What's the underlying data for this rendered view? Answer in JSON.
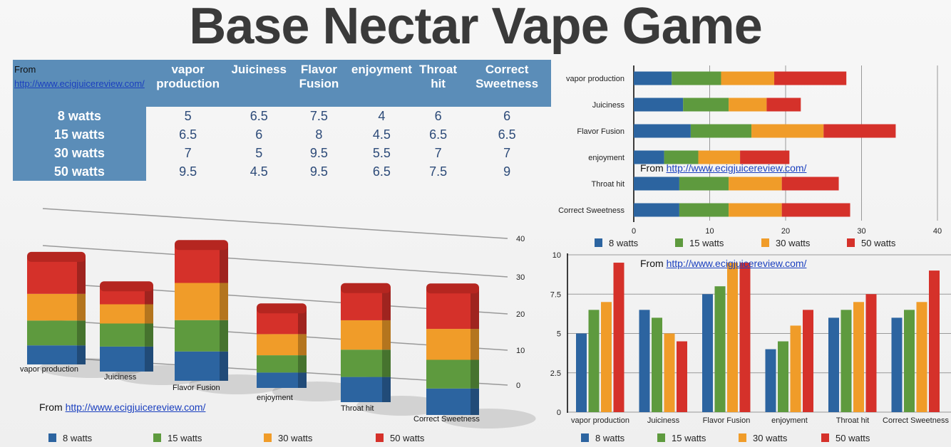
{
  "title": "Base Nectar Vape Game",
  "source_prefix": "From ",
  "source_link": "http://www.ecigjuicereview.com/",
  "table": {
    "corner_prefix": "From ",
    "corner_link": "http://www.ecigjuicereview.com/",
    "columns": [
      "vapor production",
      "Juiciness",
      "Flavor Fusion",
      "enjoyment",
      "Throat hit",
      "Correct Sweetness"
    ],
    "rows": [
      {
        "label": "8 watts",
        "values": [
          "5",
          "6.5",
          "7.5",
          "4",
          "6",
          "6"
        ]
      },
      {
        "label": "15 watts",
        "values": [
          "6.5",
          "6",
          "8",
          "4.5",
          "6.5",
          "6.5"
        ]
      },
      {
        "label": "30 watts",
        "values": [
          "7",
          "5",
          "9.5",
          "5.5",
          "7",
          "7"
        ]
      },
      {
        "label": "50 watts",
        "values": [
          "9.5",
          "4.5",
          "9.5",
          "6.5",
          "7.5",
          "9"
        ]
      }
    ]
  },
  "colors": {
    "8 watts": "#2c64a0",
    "15 watts": "#5e9a3e",
    "30 watts": "#f09c29",
    "50 watts": "#d5312a"
  },
  "chart_data": [
    {
      "type": "bar",
      "orientation": "horizontal",
      "stacked": true,
      "three_d": true,
      "categories": [
        "vapor production",
        "Juiciness",
        "Flavor Fusion",
        "enjoyment",
        "Throat hit",
        "Correct Sweetness"
      ],
      "series": [
        {
          "name": "8 watts",
          "values": [
            5,
            6.5,
            7.5,
            4,
            6,
            6
          ]
        },
        {
          "name": "15 watts",
          "values": [
            6.5,
            6,
            8,
            4.5,
            6.5,
            6.5
          ]
        },
        {
          "name": "30 watts",
          "values": [
            7,
            5,
            9.5,
            5.5,
            7,
            7
          ]
        },
        {
          "name": "50 watts",
          "values": [
            9.5,
            4.5,
            9.5,
            6.5,
            7.5,
            9
          ]
        }
      ],
      "yticks": [
        0,
        10,
        20,
        30,
        40
      ],
      "ylim": [
        0,
        40
      ],
      "grid": true,
      "legend": "bottom",
      "_note_hidden": ""
    },
    {
      "type": "bar",
      "orientation": "horizontal",
      "stacked": true,
      "categories": [
        "vapor production",
        "Juiciness",
        "Flavor Fusion",
        "enjoyment",
        "Throat hit",
        "Correct Sweetness"
      ],
      "series": [
        {
          "name": "8 watts",
          "values": [
            5,
            6.5,
            7.5,
            4,
            6,
            6
          ]
        },
        {
          "name": "15 watts",
          "values": [
            6.5,
            6,
            8,
            4.5,
            6.5,
            6.5
          ]
        },
        {
          "name": "30 watts",
          "values": [
            7,
            5,
            9.5,
            5.5,
            7,
            7
          ]
        },
        {
          "name": "50 watts",
          "values": [
            9.5,
            4.5,
            9.5,
            6.5,
            7.5,
            9
          ]
        }
      ],
      "xticks": [
        0,
        10,
        20,
        30,
        40
      ],
      "xlim": [
        0,
        40
      ],
      "grid": true,
      "legend": "bottom"
    },
    {
      "type": "bar",
      "orientation": "vertical",
      "stacked": false,
      "categories": [
        "vapor production",
        "Juiciness",
        "Flavor Fusion",
        "enjoyment",
        "Throat hit",
        "Correct Sweetness"
      ],
      "series": [
        {
          "name": "8 watts",
          "values": [
            5,
            6.5,
            7.5,
            4,
            6,
            6
          ]
        },
        {
          "name": "15 watts",
          "values": [
            6.5,
            6,
            8,
            4.5,
            6.5,
            6.5
          ]
        },
        {
          "name": "30 watts",
          "values": [
            7,
            5,
            9.5,
            5.5,
            7,
            7
          ]
        },
        {
          "name": "50 watts",
          "values": [
            9.5,
            4.5,
            9.5,
            6.5,
            7.5,
            9
          ]
        }
      ],
      "yticks": [
        "0",
        "2.5",
        "5",
        "7.5",
        "10"
      ],
      "ylim": [
        0,
        10
      ],
      "grid": true,
      "legend": "bottom"
    }
  ]
}
